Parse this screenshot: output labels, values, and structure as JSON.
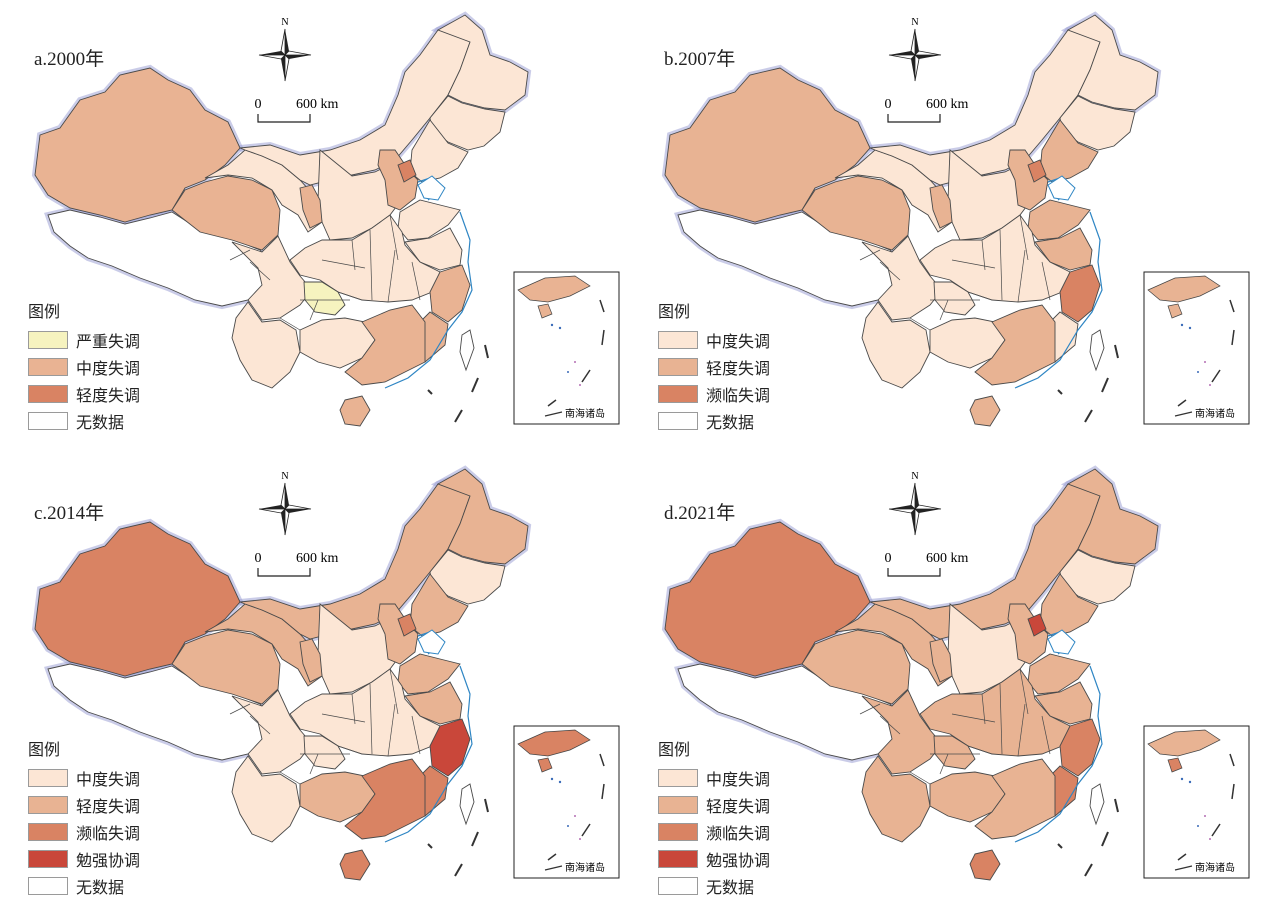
{
  "colors": {
    "severe": "#f6f3bf",
    "moderate_a": "#fce6d5",
    "mild_a": "#e9b393",
    "mild_b": "#e8b393",
    "verge": "#d98363",
    "barely": "#c9473a",
    "none": "#ffffff",
    "border": "#4a4a4a",
    "coast": "#2f86c4",
    "glow": "#9fa3d6"
  },
  "north_label": "N",
  "scale": {
    "zero": "0",
    "label": "600 km"
  },
  "inset_label": "南海诸岛",
  "legend_title": "图例",
  "panels": [
    {
      "id": "a",
      "title": "a.2000年",
      "legend": [
        {
          "label": "严重失调",
          "color": "#f6f3bf"
        },
        {
          "label": "中度失调",
          "color": "#e9b393"
        },
        {
          "label": "轻度失调",
          "color": "#d98363"
        },
        {
          "label": "无数据",
          "color": "#ffffff"
        }
      ],
      "regions": {
        "xinjiang": "#e9b393",
        "tibet": "#ffffff",
        "qinghai": "#e9b393",
        "gansu": "#fce6d5",
        "neimenggu": "#fce6d5",
        "heilongjiang": "#fce6d5",
        "jilin": "#fce6d5",
        "liaoning": "#fce6d5",
        "north": "#fce6d5",
        "beijing": "#d98363",
        "shandong": "#fce6d5",
        "central": "#fce6d5",
        "sichuan": "#fce6d5",
        "chongqing": "#f6f3bf",
        "yunnan": "#fce6d5",
        "guangxi": "#fce6d5",
        "guangdong": "#e9b393",
        "fujian": "#e9b393",
        "zhejiang": "#e9b393",
        "jiangsu": "#fce6d5",
        "hainan": "#e9b393",
        "taiwan": "#ffffff",
        "ningxia": "#e9b393",
        "hebei": "#e9b393"
      }
    },
    {
      "id": "b",
      "title": "b.2007年",
      "legend": [
        {
          "label": "中度失调",
          "color": "#fce6d5"
        },
        {
          "label": "轻度失调",
          "color": "#e8b393"
        },
        {
          "label": "濒临失调",
          "color": "#d98363"
        },
        {
          "label": "无数据",
          "color": "#ffffff"
        }
      ],
      "regions": {
        "xinjiang": "#e8b393",
        "tibet": "#ffffff",
        "qinghai": "#e8b393",
        "gansu": "#fce6d5",
        "neimenggu": "#fce6d5",
        "heilongjiang": "#fce6d5",
        "jilin": "#fce6d5",
        "liaoning": "#e8b393",
        "north": "#fce6d5",
        "beijing": "#d98363",
        "shandong": "#e8b393",
        "central": "#fce6d5",
        "sichuan": "#fce6d5",
        "chongqing": "#fce6d5",
        "yunnan": "#fce6d5",
        "guangxi": "#fce6d5",
        "guangdong": "#e8b393",
        "fujian": "#fce6d5",
        "zhejiang": "#d98363",
        "jiangsu": "#e8b393",
        "hainan": "#e8b393",
        "taiwan": "#ffffff",
        "ningxia": "#e8b393",
        "hebei": "#e8b393"
      }
    },
    {
      "id": "c",
      "title": "c.2014年",
      "legend": [
        {
          "label": "中度失调",
          "color": "#fce6d5"
        },
        {
          "label": "轻度失调",
          "color": "#e8b393"
        },
        {
          "label": "濒临失调",
          "color": "#d98363"
        },
        {
          "label": "勉强协调",
          "color": "#c9473a"
        },
        {
          "label": "无数据",
          "color": "#ffffff"
        }
      ],
      "regions": {
        "xinjiang": "#d98363",
        "tibet": "#ffffff",
        "qinghai": "#e8b393",
        "gansu": "#e8b393",
        "neimenggu": "#e8b393",
        "heilongjiang": "#e8b393",
        "jilin": "#fce6d5",
        "liaoning": "#e8b393",
        "north": "#fce6d5",
        "beijing": "#d98363",
        "shandong": "#e8b393",
        "central": "#fce6d5",
        "sichuan": "#fce6d5",
        "chongqing": "#fce6d5",
        "yunnan": "#fce6d5",
        "guangxi": "#e8b393",
        "guangdong": "#d98363",
        "fujian": "#d98363",
        "zhejiang": "#c9473a",
        "jiangsu": "#e8b393",
        "hainan": "#d98363",
        "taiwan": "#ffffff",
        "ningxia": "#e8b393",
        "hebei": "#e8b393"
      }
    },
    {
      "id": "d",
      "title": "d.2021年",
      "legend": [
        {
          "label": "中度失调",
          "color": "#fce6d5"
        },
        {
          "label": "轻度失调",
          "color": "#e8b393"
        },
        {
          "label": "濒临失调",
          "color": "#d98363"
        },
        {
          "label": "勉强协调",
          "color": "#c9473a"
        },
        {
          "label": "无数据",
          "color": "#ffffff"
        }
      ],
      "regions": {
        "xinjiang": "#d98363",
        "tibet": "#ffffff",
        "qinghai": "#e8b393",
        "gansu": "#e8b393",
        "neimenggu": "#e8b393",
        "heilongjiang": "#e8b393",
        "jilin": "#fce6d5",
        "liaoning": "#e8b393",
        "north": "#fce6d5",
        "beijing": "#c9473a",
        "shandong": "#e8b393",
        "central": "#e8b393",
        "sichuan": "#e8b393",
        "chongqing": "#e8b393",
        "yunnan": "#e8b393",
        "guangxi": "#e8b393",
        "guangdong": "#e8b393",
        "fujian": "#d98363",
        "zhejiang": "#d98363",
        "jiangsu": "#e8b393",
        "hainan": "#d98363",
        "taiwan": "#ffffff",
        "ningxia": "#e8b393",
        "hebei": "#e8b393"
      }
    }
  ]
}
